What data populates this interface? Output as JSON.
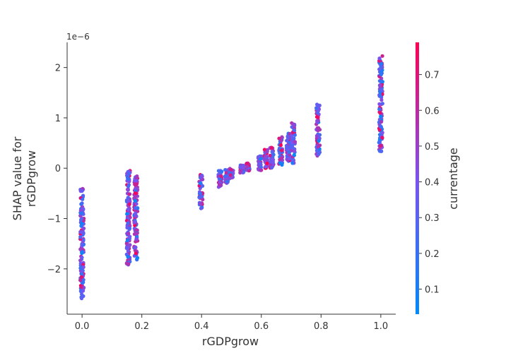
{
  "chart_data": {
    "type": "scatter",
    "xlabel": "rGDPgrow",
    "ylabel_line1": "SHAP value for",
    "ylabel_line2": "rGDPgrow",
    "y_offset_label": "1e−6",
    "xlim": [
      -0.05,
      1.05
    ],
    "ylim": [
      -2.9e-06,
      2.5e-06
    ],
    "x_ticks": [
      0.0,
      0.2,
      0.4,
      0.6,
      0.8,
      1.0
    ],
    "x_tick_labels": [
      "0.0",
      "0.2",
      "0.4",
      "0.6",
      "0.8",
      "1.0"
    ],
    "y_ticks": [
      2e-06,
      1e-06,
      0,
      -1e-06,
      -2e-06
    ],
    "y_tick_labels": [
      "2",
      "1",
      "0",
      "−1",
      "−2"
    ],
    "grid": false,
    "colorbar": {
      "label": "currentage",
      "range": [
        0.03,
        0.79
      ],
      "ticks": [
        0.1,
        0.2,
        0.3,
        0.4,
        0.5,
        0.6,
        0.7
      ],
      "tick_labels": [
        "0.1",
        "0.2",
        "0.3",
        "0.4",
        "0.5",
        "0.6",
        "0.7"
      ],
      "colors": [
        "#008afb",
        "#7c52f0",
        "#ff0052"
      ]
    },
    "clusters": [
      {
        "x": 0.0,
        "y_min": -2.6e-06,
        "y_max": -3.7e-07,
        "color_bias": 0.3
      },
      {
        "x": 0.155,
        "y_min": -1.92e-06,
        "y_max": -3e-08,
        "color_bias": 0.5
      },
      {
        "x": 0.18,
        "y_min": -1.88e-06,
        "y_max": -1.5e-07,
        "color_bias": 0.6
      },
      {
        "x": 0.398,
        "y_min": -8.2e-07,
        "y_max": -1e-07,
        "color_bias": 0.5
      },
      {
        "x": 0.462,
        "y_min": -3.8e-07,
        "y_max": -4e-08,
        "color_bias": 0.5
      },
      {
        "x": 0.484,
        "y_min": -3e-07,
        "y_max": -3e-08,
        "color_bias": 0.45
      },
      {
        "x": 0.5,
        "y_min": -2e-07,
        "y_max": 0.0,
        "color_bias": 0.4
      },
      {
        "x": 0.535,
        "y_min": -1e-07,
        "y_max": 6e-08,
        "color_bias": 0.4
      },
      {
        "x": 0.555,
        "y_min": -5e-08,
        "y_max": 1e-07,
        "color_bias": 0.35
      },
      {
        "x": 0.595,
        "y_min": -5e-08,
        "y_max": 2.5e-07,
        "color_bias": 0.4
      },
      {
        "x": 0.615,
        "y_min": 0.0,
        "y_max": 3.8e-07,
        "color_bias": 0.5
      },
      {
        "x": 0.635,
        "y_min": 0.0,
        "y_max": 4.2e-07,
        "color_bias": 0.45
      },
      {
        "x": 0.665,
        "y_min": 5e-08,
        "y_max": 6.5e-07,
        "color_bias": 0.4
      },
      {
        "x": 0.69,
        "y_min": 1.2e-07,
        "y_max": 7.2e-07,
        "color_bias": 0.5
      },
      {
        "x": 0.707,
        "y_min": 1e-07,
        "y_max": 9e-07,
        "color_bias": 0.45
      },
      {
        "x": 0.79,
        "y_min": 2.2e-07,
        "y_max": 1.27e-06,
        "color_bias": 0.5
      },
      {
        "x": 1.0,
        "y_min": 3.2e-07,
        "y_max": 2.23e-06,
        "color_bias": 0.3
      }
    ]
  }
}
